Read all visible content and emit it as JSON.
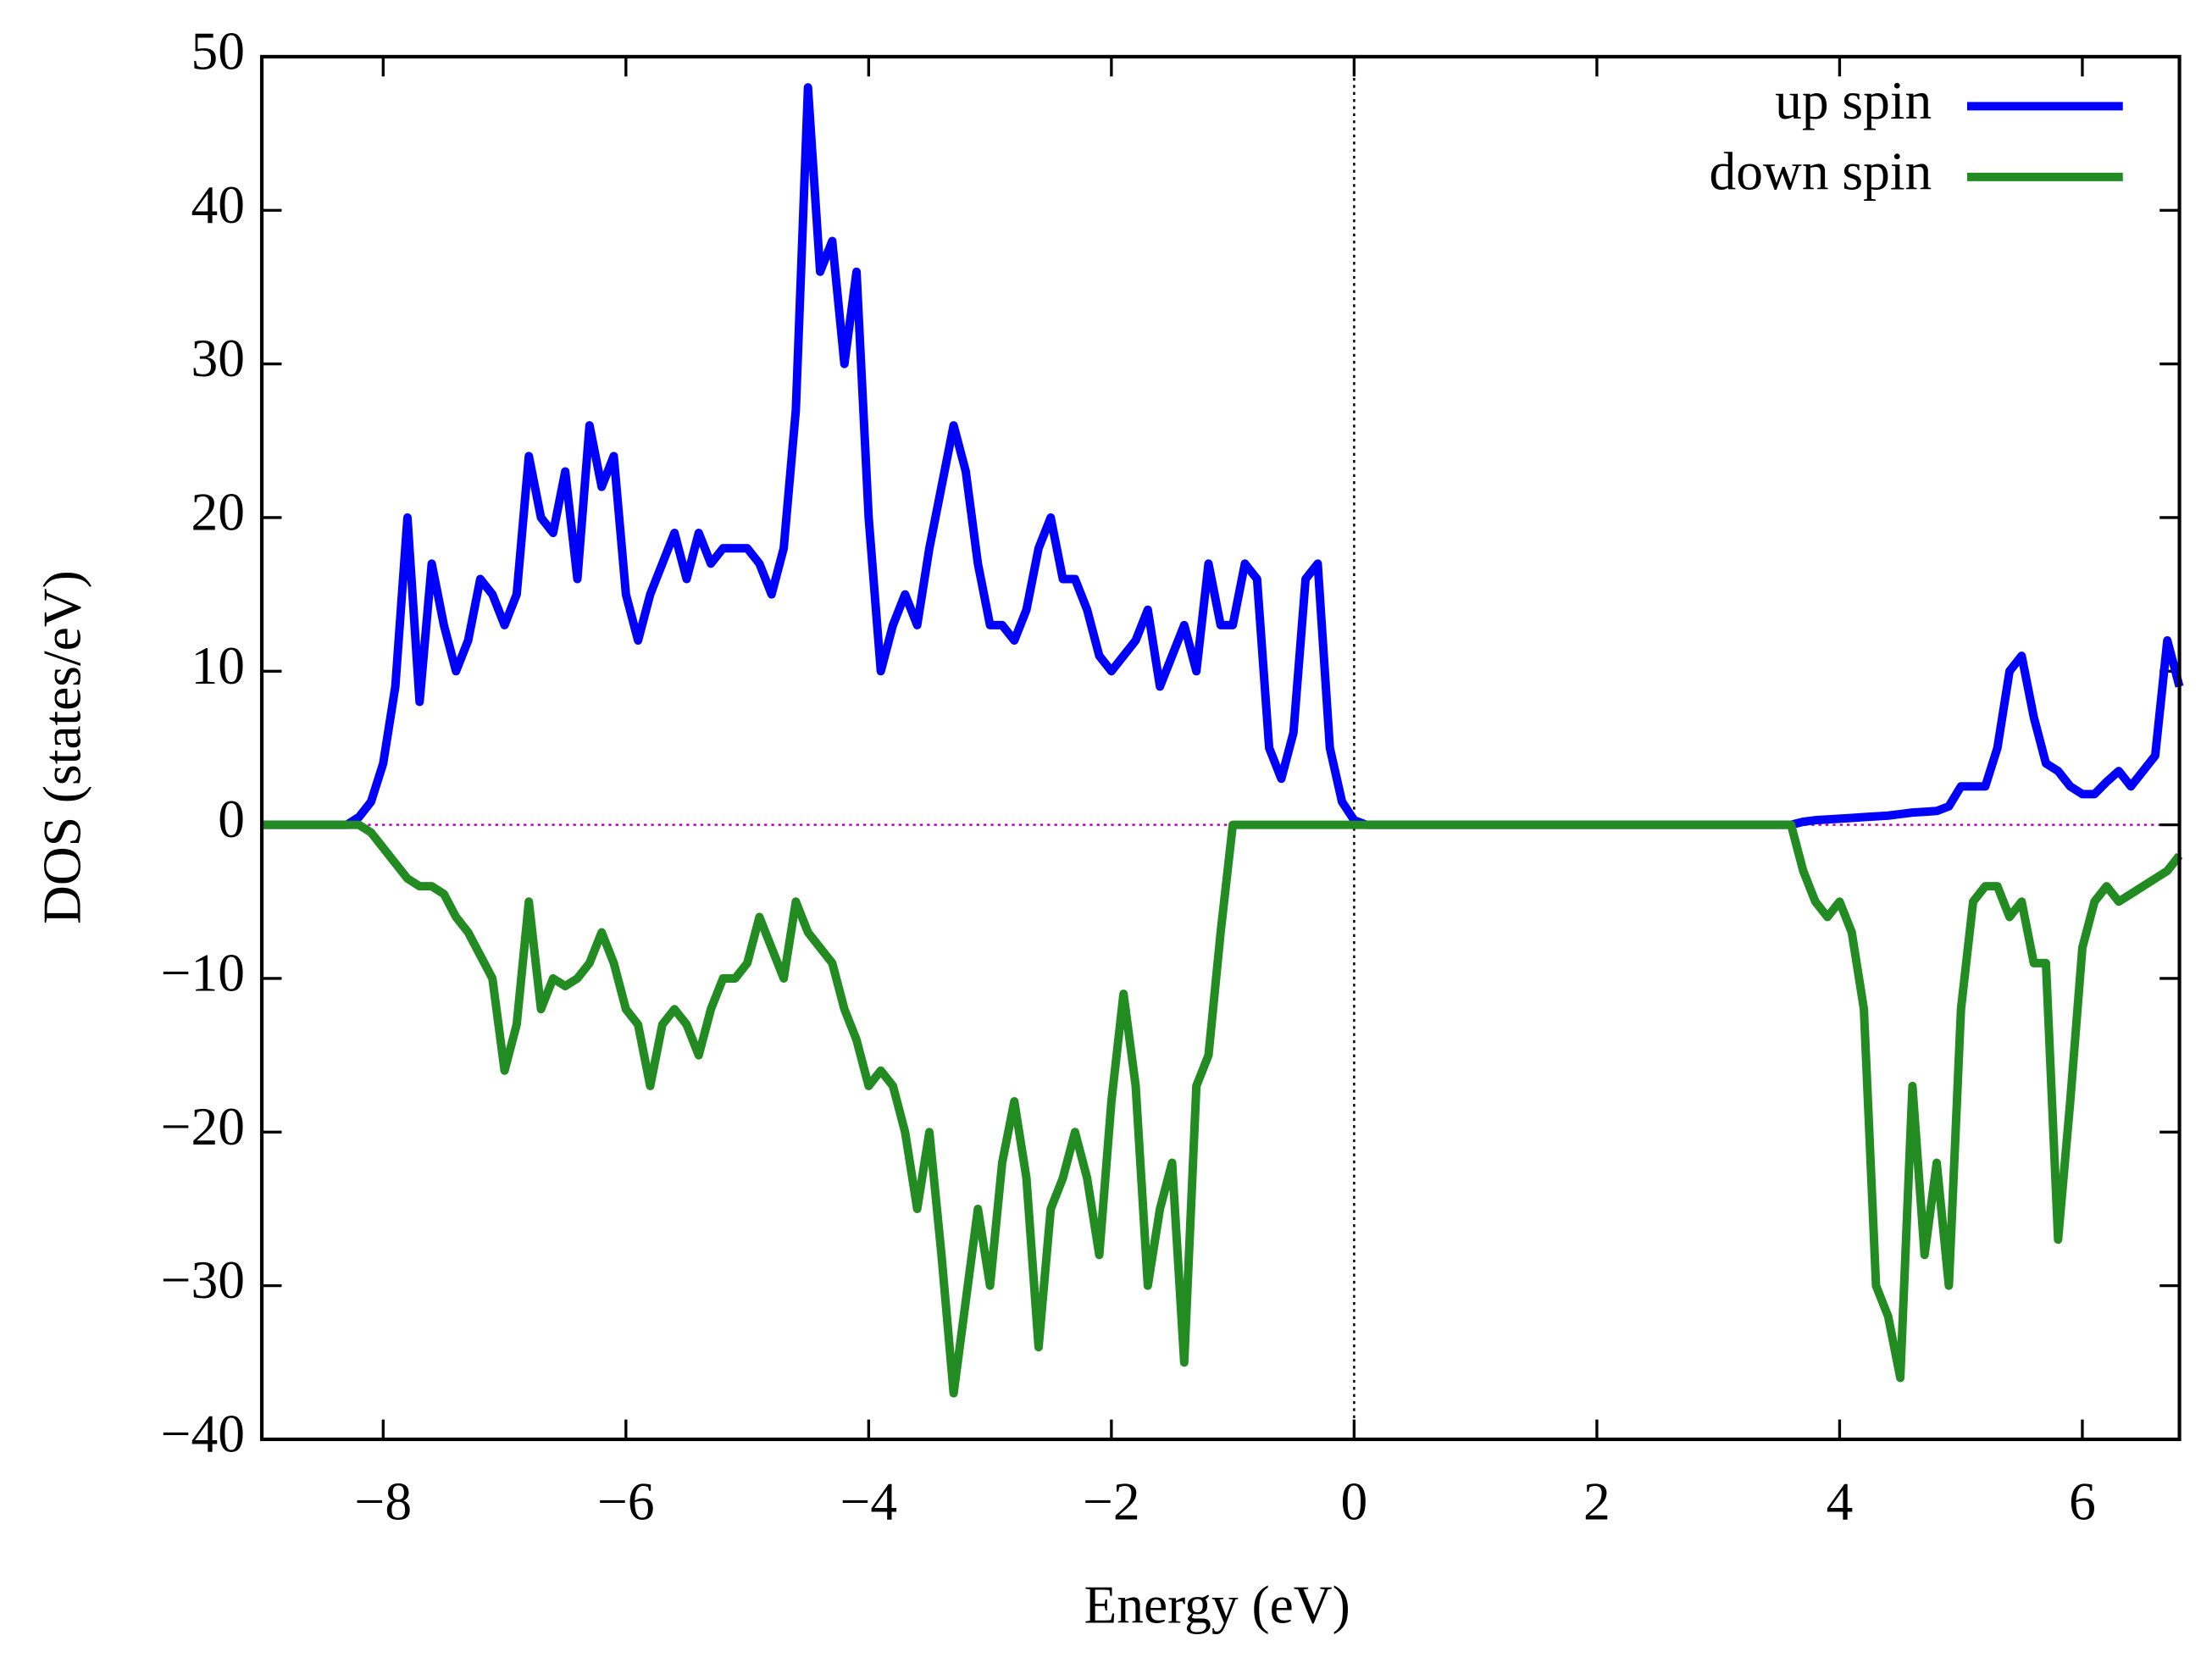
{
  "chart_data": {
    "type": "line",
    "xlabel": "Energy (eV)",
    "ylabel": "DOS (states/eV)",
    "x": [
      -9,
      -8.9,
      -8.8,
      -8.7,
      -8.6,
      -8.5,
      -8.4,
      -8.3,
      -8.2,
      -8.1,
      -8,
      -7.9,
      -7.8,
      -7.7,
      -7.6,
      -7.5,
      -7.4,
      -7.3,
      -7.2,
      -7.1,
      -7,
      -6.9,
      -6.8,
      -6.7,
      -6.6,
      -6.5,
      -6.4,
      -6.3,
      -6.2,
      -6.1,
      -6,
      -5.9,
      -5.8,
      -5.7,
      -5.6,
      -5.5,
      -5.4,
      -5.3,
      -5.2,
      -5.1,
      -5,
      -4.9,
      -4.8,
      -4.7,
      -4.6,
      -4.5,
      -4.4,
      -4.3,
      -4.2,
      -4.1,
      -4,
      -3.9,
      -3.8,
      -3.7,
      -3.6,
      -3.5,
      -3.4,
      -3.3,
      -3.2,
      -3.1,
      -3,
      -2.9,
      -2.8,
      -2.7,
      -2.6,
      -2.5,
      -2.4,
      -2.3,
      -2.2,
      -2.1,
      -2,
      -1.9,
      -1.8,
      -1.7,
      -1.6,
      -1.5,
      -1.4,
      -1.3,
      -1.2,
      -1.1,
      -1,
      -0.9,
      -0.8,
      -0.7,
      -0.6,
      -0.5,
      -0.4,
      -0.3,
      -0.2,
      -0.1,
      0,
      0.1,
      0.2,
      0.3,
      0.4,
      0.5,
      0.6,
      0.7,
      0.8,
      0.9,
      1,
      1.1,
      1.2,
      1.3,
      1.4,
      1.5,
      1.6,
      1.7,
      1.8,
      1.9,
      2,
      2.1,
      2.2,
      2.3,
      2.4,
      2.5,
      2.6,
      2.7,
      2.8,
      2.9,
      3,
      3.1,
      3.2,
      3.3,
      3.4,
      3.5,
      3.6,
      3.7,
      3.8,
      3.9,
      4,
      4.1,
      4.2,
      4.3,
      4.4,
      4.5,
      4.6,
      4.7,
      4.8,
      4.9,
      5,
      5.1,
      5.2,
      5.3,
      5.4,
      5.5,
      5.6,
      5.7,
      5.8,
      5.9,
      6,
      6.1,
      6.2,
      6.3,
      6.4,
      6.5,
      6.6,
      6.7,
      6.8
    ],
    "series": [
      {
        "name": "up spin",
        "color": "#0000ff",
        "values": [
          0,
          0,
          0,
          0,
          0,
          0,
          0,
          0,
          0.5,
          1.5,
          4,
          9,
          20,
          8,
          17,
          13,
          10,
          12,
          16,
          15,
          13,
          15,
          24,
          20,
          19,
          23,
          16,
          26,
          22,
          24,
          15,
          12,
          15,
          17,
          19,
          16,
          19,
          17,
          18,
          18,
          18,
          17,
          15,
          18,
          27,
          48,
          36,
          38,
          30,
          36,
          20,
          10,
          13,
          15,
          13,
          18,
          22,
          26,
          23,
          17,
          13,
          13,
          12,
          14,
          18,
          20,
          16,
          16,
          14,
          11,
          10,
          11,
          12,
          14,
          9,
          11,
          13,
          10,
          17,
          13,
          13,
          17,
          16,
          5,
          3,
          6,
          16,
          17,
          5,
          1.5,
          0.3,
          0,
          0,
          0,
          0,
          0,
          0,
          0,
          0,
          0,
          0,
          0,
          0,
          0,
          0,
          0,
          0,
          0,
          0,
          0,
          0,
          0,
          0,
          0,
          0,
          0,
          0,
          0,
          0,
          0,
          0,
          0,
          0,
          0,
          0,
          0,
          0,
          0.2,
          0.3,
          0.35,
          0.4,
          0.45,
          0.5,
          0.55,
          0.6,
          0.7,
          0.8,
          0.85,
          0.9,
          1.2,
          2.5,
          2.5,
          2.5,
          5,
          10,
          11,
          7,
          4,
          3.5,
          2.5,
          2,
          2,
          2.8,
          3.5,
          2.5,
          3.5,
          4.5,
          12,
          9
        ]
      },
      {
        "name": "down spin",
        "color": "#228b22",
        "values": [
          0,
          0,
          0,
          0,
          0,
          0,
          0,
          0,
          0,
          -0.5,
          -1.5,
          -2.5,
          -3.5,
          -4,
          -4,
          -4.5,
          -6,
          -7,
          -8.5,
          -10,
          -16,
          -13,
          -5,
          -12,
          -10,
          -10.5,
          -10,
          -9,
          -7,
          -9,
          -12,
          -13,
          -17,
          -13,
          -12,
          -13,
          -15,
          -12,
          -10,
          -10,
          -9,
          -6,
          -8,
          -10,
          -5,
          -7,
          -8,
          -9,
          -12,
          -14,
          -17,
          -16,
          -17,
          -20,
          -25,
          -20,
          -28,
          -37,
          -31,
          -25,
          -30,
          -22,
          -18,
          -23,
          -34,
          -25,
          -23,
          -20,
          -23,
          -28,
          -18,
          -11,
          -17,
          -30,
          -25,
          -22,
          -35,
          -17,
          -15,
          -7,
          0,
          0,
          0,
          0,
          0,
          0,
          0,
          0,
          0,
          0,
          0,
          0,
          0,
          0,
          0,
          0,
          0,
          0,
          0,
          0,
          0,
          0,
          0,
          0,
          0,
          0,
          0,
          0,
          0,
          0,
          0,
          0,
          0,
          0,
          0,
          0,
          0,
          0,
          0,
          0,
          0,
          0,
          0,
          0,
          0,
          0,
          0,
          -3,
          -5,
          -6,
          -5,
          -7,
          -12,
          -30,
          -32,
          -36,
          -17,
          -28,
          -22,
          -30,
          -12,
          -5,
          -4,
          -4,
          -6,
          -5,
          -9,
          -9,
          -27,
          -18,
          -8,
          -5,
          -4,
          -5,
          -4.5,
          -4,
          -3.5,
          -3,
          -2
        ]
      }
    ],
    "xlim": [
      -9,
      6.8
    ],
    "ylim": [
      -40,
      50
    ],
    "xticks": [
      {
        "value": -8,
        "label": "−8"
      },
      {
        "value": -6,
        "label": "−6"
      },
      {
        "value": -4,
        "label": "−4"
      },
      {
        "value": -2,
        "label": "−2"
      },
      0,
      2,
      4,
      6
    ],
    "yticks": [
      {
        "value": -40,
        "label": "−40"
      },
      {
        "value": -30,
        "label": "−30"
      },
      {
        "value": -20,
        "label": "−20"
      },
      {
        "value": -10,
        "label": "−10"
      },
      0,
      10,
      20,
      30,
      40,
      50
    ],
    "legend": "top-right",
    "zero_lines": true
  }
}
